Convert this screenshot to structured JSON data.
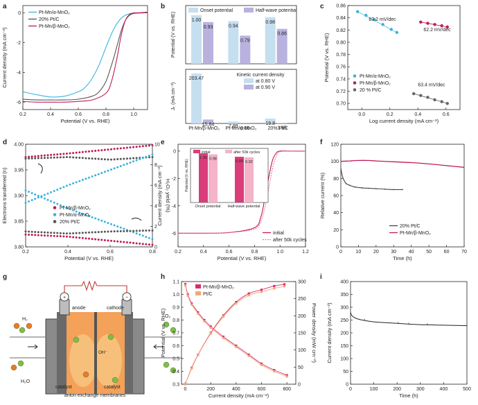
{
  "panels": {
    "a": "a",
    "b": "b",
    "c": "c",
    "d": "d",
    "e": "e",
    "f": "f",
    "g": "g",
    "h": "h",
    "i": "i"
  },
  "chart_data": [
    {
      "id": "a",
      "type": "line",
      "xlabel": "Potential (V vs. RHE)",
      "ylabel": "Current density (mA cm⁻²)",
      "xlim": [
        0.2,
        1.1
      ],
      "ylim": [
        -6.5,
        0.5
      ],
      "xticks": [
        "0.2",
        "0.4",
        "0.6",
        "0.8",
        "1.0"
      ],
      "yticks": [
        "0",
        "-2",
        "-4",
        "-6"
      ],
      "series": [
        {
          "name": "Pt-Mn/α-MnO₂",
          "color": "#3bb3e0",
          "x": [
            0.2,
            0.3,
            0.4,
            0.5,
            0.6,
            0.65,
            0.7,
            0.75,
            0.8,
            0.85,
            0.88,
            0.91,
            0.94,
            0.97,
            1.0,
            1.05,
            1.1
          ],
          "y": [
            -5.3,
            -5.5,
            -5.65,
            -5.6,
            -5.3,
            -5.0,
            -4.4,
            -3.5,
            -2.3,
            -1.2,
            -0.7,
            -0.35,
            -0.15,
            -0.05,
            0,
            0.02,
            0.05
          ]
        },
        {
          "name": "20% Pt/C",
          "color": "#555555",
          "x": [
            0.2,
            0.3,
            0.4,
            0.5,
            0.6,
            0.7,
            0.75,
            0.8,
            0.85,
            0.88,
            0.91,
            0.94,
            0.97,
            1.0,
            1.05,
            1.1
          ],
          "y": [
            -5.8,
            -5.85,
            -5.85,
            -5.85,
            -5.8,
            -5.6,
            -5.3,
            -4.6,
            -3.2,
            -2.2,
            -1.2,
            -0.5,
            -0.15,
            -0.03,
            0,
            0.02
          ]
        },
        {
          "name": "Pt-Mn/β-MnO₂",
          "color": "#c2185b",
          "x": [
            0.2,
            0.3,
            0.4,
            0.5,
            0.6,
            0.7,
            0.8,
            0.84,
            0.88,
            0.91,
            0.94,
            0.97,
            1.0,
            1.05,
            1.1
          ],
          "y": [
            -5.95,
            -6.0,
            -6.0,
            -6.0,
            -5.95,
            -5.85,
            -5.4,
            -4.6,
            -3.0,
            -1.5,
            -0.5,
            -0.1,
            0,
            0.02,
            0.05
          ]
        }
      ]
    },
    {
      "id": "b",
      "type": "bar",
      "categories": [
        "Pt-Mn/β-MnO₂",
        "Pt-Mn/α-MnO₂",
        "20% Pt/C"
      ],
      "top": {
        "ylabel": "Potential (V vs. RHE)",
        "ylim": [
          0.5,
          1.1
        ],
        "series": [
          {
            "name": "Onset potential",
            "color": "#c6dff0",
            "values": [
              1.0,
              0.94,
              0.98
            ],
            "labels": [
              "1.00",
              "0.94",
              "0.98"
            ]
          },
          {
            "name": "Half-wave potential",
            "color": "#b9b2de",
            "values": [
              0.93,
              0.79,
              0.86
            ],
            "labels": [
              "0.93",
              "0.79",
              "0.86"
            ]
          }
        ]
      },
      "bottom": {
        "ylabel": "Jₖ (mA cm⁻²)",
        "title": "Kinetic current density",
        "ylim": [
          0,
          220
        ],
        "series": [
          {
            "name": "at 0.80 V",
            "color": "#c6dff0",
            "values": [
              203.47,
              7.89,
              19.8
            ],
            "labels": [
              "203.47",
              "7.89",
              "19.8"
            ]
          },
          {
            "name": "at 0.90 V",
            "color": "#b9b2de",
            "values": [
              15.84,
              0.66,
              1.95
            ],
            "labels": [
              "15.84",
              "0.66",
              "1.95"
            ]
          }
        ]
      }
    },
    {
      "id": "c",
      "type": "scatter",
      "xlabel": "Log current density (mA cm⁻²)",
      "ylabel": "Potential (V vs. RHE)",
      "xlim": [
        -0.1,
        0.7
      ],
      "ylim": [
        0.69,
        0.86
      ],
      "xticks": [
        "0.0",
        "0.2",
        "0.4",
        "0.6"
      ],
      "yticks": [
        "0.86",
        "0.84",
        "0.82",
        "0.80",
        "0.78",
        "0.76",
        "0.74",
        "0.72",
        "0.70"
      ],
      "series": [
        {
          "name": "Pt-Mn/α-MnO₂",
          "color": "#3bb3e0",
          "x": [
            -0.03,
            0.03,
            0.09,
            0.15,
            0.21,
            0.25
          ],
          "y": [
            0.85,
            0.844,
            0.837,
            0.829,
            0.821,
            0.816
          ],
          "slope": "83.2 mV/dec"
        },
        {
          "name": "Pt-Mn/β-MnO₂",
          "color": "#c2185b",
          "x": [
            0.42,
            0.47,
            0.52,
            0.57,
            0.61
          ],
          "y": [
            0.833,
            0.831,
            0.829,
            0.827,
            0.825
          ],
          "slope": "62.2 mV/dec"
        },
        {
          "name": "20 % Pt/C",
          "color": "#666666",
          "x": [
            0.37,
            0.42,
            0.47,
            0.52,
            0.57,
            0.61
          ],
          "y": [
            0.716,
            0.713,
            0.71,
            0.706,
            0.703,
            0.7
          ],
          "slope": "63.4 mV/dec"
        }
      ]
    },
    {
      "id": "d",
      "type": "scatter",
      "xlabel": "Potential (V vs. RHE)",
      "ylabel": "Electrons transferred (n)",
      "y2label": "H₂O₂ yield (%)",
      "xlim": [
        0.2,
        0.8
      ],
      "ylim": [
        3.8,
        4.0
      ],
      "y2lim": [
        0,
        10
      ],
      "xticks": [
        "0.2",
        "0.4",
        "0.6",
        "0.8"
      ],
      "yticks": [
        "4.00",
        "3.95",
        "3.90",
        "3.85",
        "3.80"
      ],
      "y2ticks": [
        "10",
        "8",
        "6",
        "4",
        "2",
        "0"
      ],
      "series": [
        {
          "name": "Pt-Mn/β-MnO₂",
          "color": "#c2185b",
          "axis": "left",
          "x": [
            0.2,
            0.4,
            0.6,
            0.8
          ],
          "y": [
            3.975,
            3.982,
            3.99,
            3.998
          ]
        },
        {
          "name": "Pt-Mn/α-MnO₂",
          "color": "#3bb3e0",
          "axis": "left",
          "x": [
            0.2,
            0.4,
            0.6,
            0.8
          ],
          "y": [
            3.91,
            3.875,
            3.845,
            3.815
          ]
        },
        {
          "name": "20% Pt/C",
          "color": "#555555",
          "axis": "left",
          "x": [
            0.2,
            0.4,
            0.6,
            0.8
          ],
          "y": [
            3.972,
            3.975,
            3.97,
            3.975
          ]
        },
        {
          "name": "Pt-Mn/β-MnO₂",
          "color": "#c2185b",
          "axis": "right",
          "x": [
            0.2,
            0.4,
            0.6,
            0.8
          ],
          "y": [
            1.2,
            1.0,
            0.6,
            0.2
          ]
        },
        {
          "name": "Pt-Mn/α-MnO₂",
          "color": "#3bb3e0",
          "axis": "right",
          "x": [
            0.2,
            0.4,
            0.6,
            0.8
          ],
          "y": [
            4.3,
            6.0,
            7.5,
            9.0
          ]
        },
        {
          "name": "20% Pt/C",
          "color": "#555555",
          "axis": "right",
          "x": [
            0.2,
            0.4,
            0.6,
            0.8
          ],
          "y": [
            1.5,
            1.3,
            1.5,
            1.6
          ]
        }
      ]
    },
    {
      "id": "e",
      "type": "line",
      "xlabel": "Potential (V vs. RHE)",
      "ylabel": "Current density (mA cm⁻²)",
      "xlim": [
        0.2,
        1.2
      ],
      "ylim": [
        -7,
        0.5
      ],
      "xticks": [
        "0.2",
        "0.4",
        "0.6",
        "0.8",
        "1.0",
        "1.2"
      ],
      "yticks": [
        "0",
        "-2",
        "-4",
        "-6"
      ],
      "series": [
        {
          "name": "initial",
          "color": "#c2185b",
          "dash": false,
          "x": [
            0.2,
            0.4,
            0.6,
            0.8,
            0.85,
            0.88,
            0.91,
            0.94,
            0.97,
            1.0,
            1.1,
            1.2
          ],
          "y": [
            -6.0,
            -6.0,
            -5.95,
            -5.6,
            -4.8,
            -3.5,
            -2.0,
            -0.7,
            -0.15,
            0,
            0,
            0
          ]
        },
        {
          "name": "after 50k cycles",
          "color": "#e57399",
          "dash": true,
          "x": [
            0.2,
            0.4,
            0.6,
            0.8,
            0.85,
            0.88,
            0.91,
            0.94,
            0.97,
            1.0,
            1.1,
            1.2
          ],
          "y": [
            -6.0,
            -6.0,
            -5.95,
            -5.7,
            -5.1,
            -4.2,
            -2.8,
            -1.3,
            -0.4,
            -0.05,
            0,
            0
          ]
        }
      ],
      "inset": {
        "ylabel": "Potential (V vs. RHE)",
        "categories": [
          "Onset potential",
          "Half-wave potential"
        ],
        "ylim": [
          0,
          1.1
        ],
        "series": [
          {
            "name": "initial",
            "color": "#d93d7a",
            "values": [
              1.0,
              0.93
            ],
            "labels": [
              "1.00",
              "0.93"
            ]
          },
          {
            "name": "after 50k cycles",
            "color": "#f4b3c9",
            "values": [
              0.98,
              0.92
            ],
            "labels": [
              "0.98",
              "0.92"
            ]
          }
        ]
      }
    },
    {
      "id": "f",
      "type": "line",
      "xlabel": "Time (h)",
      "ylabel": "Relative current (%)",
      "xlim": [
        0,
        70
      ],
      "ylim": [
        0,
        120
      ],
      "xticks": [
        "0",
        "10",
        "20",
        "30",
        "40",
        "50",
        "60",
        "70"
      ],
      "yticks": [
        "120",
        "100",
        "80",
        "60",
        "40",
        "20",
        "0"
      ],
      "series": [
        {
          "name": "20% Pt/C",
          "color": "#444444",
          "x": [
            0,
            0.5,
            1,
            2,
            3,
            5,
            8,
            12,
            16,
            20,
            25,
            30,
            35
          ],
          "y": [
            92,
            86,
            82,
            77,
            74,
            72,
            70,
            69,
            68.5,
            68,
            67.5,
            67,
            67
          ]
        },
        {
          "name": "Pt-Mn/β-MnO₂",
          "color": "#c2185b",
          "x": [
            0,
            5,
            10,
            15,
            20,
            30,
            40,
            50,
            60,
            70
          ],
          "y": [
            100,
            100.5,
            101,
            101,
            100.5,
            99.5,
            98.5,
            97,
            95,
            93
          ]
        }
      ]
    },
    {
      "id": "h",
      "type": "line",
      "xlabel": "Current density (mA cm⁻²)",
      "ylabel": "Potential (V vs. RHE)",
      "y2label": "Power density (mW cm⁻²)",
      "xlim": [
        -30,
        870
      ],
      "ylim": [
        0.3,
        1.1
      ],
      "y2lim": [
        0,
        300
      ],
      "xticks": [
        "0",
        "200",
        "400",
        "600",
        "800"
      ],
      "yticks": [
        "1.1",
        "1.0",
        "0.9",
        "0.8",
        "0.7",
        "0.6",
        "0.5",
        "0.4",
        "0.3"
      ],
      "y2ticks": [
        "300",
        "250",
        "200",
        "150",
        "100",
        "50",
        "0"
      ],
      "series": [
        {
          "name": "Pt-Mn/β-MnO₂",
          "color": "#d62f6e",
          "axis": "left",
          "x": [
            0,
            20,
            50,
            100,
            150,
            200,
            300,
            400,
            500,
            600,
            700,
            800
          ],
          "y": [
            1.08,
            1.0,
            0.93,
            0.86,
            0.8,
            0.75,
            0.67,
            0.6,
            0.53,
            0.46,
            0.41,
            0.37
          ]
        },
        {
          "name": "Pt/C",
          "color": "#f0a878",
          "axis": "left",
          "x": [
            0,
            20,
            50,
            100,
            150,
            200,
            300,
            400,
            500,
            600,
            700,
            800
          ],
          "y": [
            1.07,
            0.99,
            0.92,
            0.85,
            0.79,
            0.74,
            0.66,
            0.59,
            0.52,
            0.45,
            0.4,
            0.36
          ]
        },
        {
          "name": "Pt-Mn/β-MnO₂",
          "color": "#d62f6e",
          "axis": "right",
          "x": [
            0,
            50,
            100,
            200,
            300,
            400,
            500,
            600,
            700,
            780
          ],
          "y": [
            0,
            48,
            86,
            150,
            201,
            240,
            265,
            276,
            287,
            292
          ]
        },
        {
          "name": "Pt/C",
          "color": "#f0a878",
          "axis": "right",
          "x": [
            0,
            50,
            100,
            200,
            300,
            400,
            500,
            600,
            700,
            780
          ],
          "y": [
            0,
            46,
            85,
            148,
            198,
            236,
            260,
            270,
            280,
            286
          ]
        }
      ]
    },
    {
      "id": "i",
      "type": "line",
      "xlabel": "Time (h)",
      "ylabel": "Current density (mA cm⁻²)",
      "xlim": [
        0,
        500
      ],
      "ylim": [
        0,
        400
      ],
      "xticks": [
        "0",
        "100",
        "200",
        "300",
        "400",
        "500"
      ],
      "yticks": [
        "400",
        "350",
        "300",
        "250",
        "200",
        "150",
        "100",
        "50",
        "0"
      ],
      "series": [
        {
          "name": "",
          "color": "#222222",
          "x": [
            0,
            5,
            20,
            50,
            100,
            150,
            200,
            250,
            300,
            350,
            400,
            450,
            500
          ],
          "y": [
            280,
            268,
            258,
            250,
            243,
            240,
            237,
            234,
            232,
            231,
            230,
            229,
            228
          ]
        }
      ]
    }
  ],
  "schematic": {
    "h2": "H₂",
    "o2": "O₂",
    "h2o": "H₂O",
    "oh": "OH⁻",
    "anode": "anode",
    "cathode": "cathode",
    "plus": "+",
    "minus": "−",
    "catalyst_left": "catalyst",
    "catalyst_right": "catalyst",
    "membrane": "anion exchange membranes"
  }
}
